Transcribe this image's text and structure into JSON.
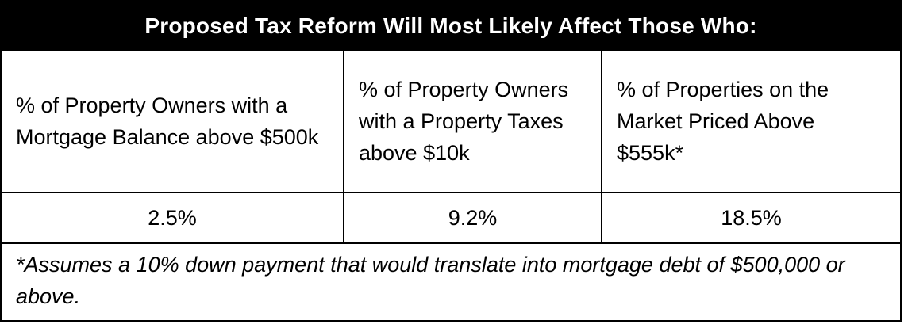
{
  "table": {
    "title": "Proposed Tax Reform Will Most Likely Affect Those Who:",
    "headers": [
      "% of Property Owners with a Mortgage Balance above $500k",
      "% of Property Owners with a Property Taxes above $10k",
      "% of Properties on the Market Priced Above $555k*"
    ],
    "values": [
      "2.5%",
      "9.2%",
      "18.5%"
    ],
    "footnote": "*Assumes a 10% down payment that would translate into mortgage debt of $500,000 or above."
  }
}
